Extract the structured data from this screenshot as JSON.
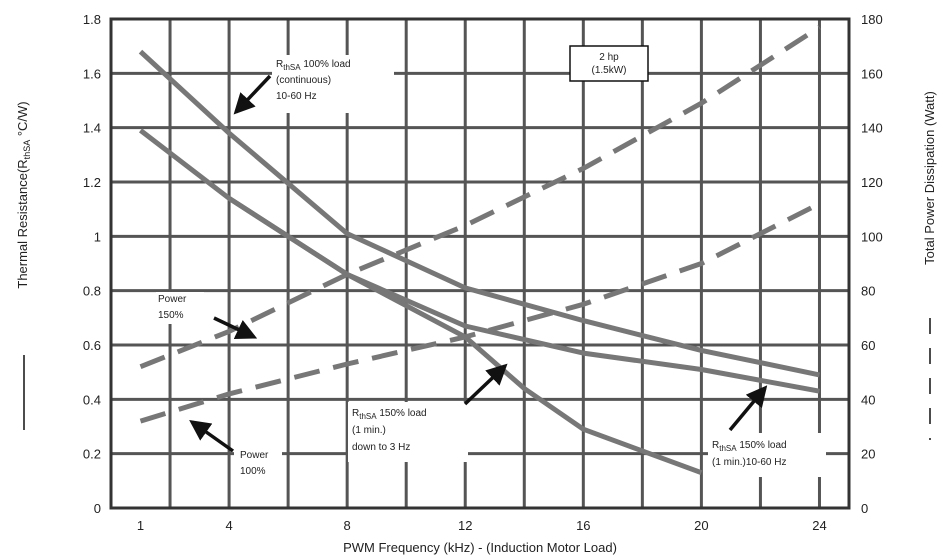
{
  "chart_data": {
    "type": "line",
    "xlabel": "PWM Frequency (kHz) - (Induction Motor Load)",
    "ylabel_left": {
      "main": "Thermal Resistance(R",
      "sub": "thSA",
      "tail": " °C/W)"
    },
    "ylabel_right": "Total Power Dissipation (Watt)",
    "x_ticks": [
      "1",
      "4",
      "8",
      "12",
      "16",
      "20",
      "24"
    ],
    "x_range": [
      0,
      25
    ],
    "y_left_ticks": [
      "0",
      "0.2",
      "0.4",
      "0.6",
      "0.8",
      "1",
      "1.2",
      "1.4",
      "1.6",
      "1.8"
    ],
    "y_left_range": [
      0,
      1.8
    ],
    "y_right_ticks": [
      "0",
      "20",
      "40",
      "60",
      "80",
      "100",
      "120",
      "140",
      "160",
      "180"
    ],
    "y_right_range": [
      0,
      180
    ],
    "grid": true,
    "series": [
      {
        "axis": "left",
        "style": "solid",
        "points": [
          [
            1,
            1.68
          ],
          [
            4,
            1.38
          ],
          [
            8,
            1.01
          ],
          [
            12,
            0.81
          ],
          [
            16,
            0.69
          ],
          [
            20,
            0.58
          ],
          [
            24,
            0.49
          ]
        ]
      },
      {
        "axis": "left",
        "style": "solid",
        "points": [
          [
            1,
            1.39
          ],
          [
            4,
            1.14
          ],
          [
            8,
            0.86
          ],
          [
            12,
            0.67
          ],
          [
            16,
            0.57
          ],
          [
            20,
            0.51
          ],
          [
            24,
            0.43
          ]
        ]
      },
      {
        "axis": "left",
        "style": "solid",
        "points": [
          [
            4,
            1.14
          ],
          [
            8,
            0.86
          ],
          [
            12,
            0.63
          ],
          [
            14,
            0.44
          ],
          [
            16,
            0.29
          ],
          [
            20,
            0.13
          ]
        ]
      },
      {
        "axis": "right",
        "style": "dashed",
        "points": [
          [
            1,
            52
          ],
          [
            4,
            65
          ],
          [
            8,
            86
          ],
          [
            12,
            104
          ],
          [
            16,
            125
          ],
          [
            20,
            149
          ],
          [
            24,
            177
          ]
        ]
      },
      {
        "axis": "right",
        "style": "dashed",
        "points": [
          [
            1,
            32
          ],
          [
            4,
            42
          ],
          [
            8,
            53
          ],
          [
            12,
            63
          ],
          [
            16,
            75
          ],
          [
            20,
            90
          ],
          [
            24,
            112
          ]
        ]
      }
    ],
    "annotations": {
      "box": [
        "2 hp",
        "(1.5kW)"
      ],
      "r100": {
        "pre": "R",
        "sub": "thSA",
        "post": " 100% load",
        "lines": [
          "(continuous)",
          "10-60 Hz"
        ]
      },
      "power150": [
        "Power",
        "150%"
      ],
      "r150a": {
        "pre": "R",
        "sub": "thSA",
        "post": " 150% load",
        "lines": [
          "(1 min.)",
          "down to 3 Hz"
        ]
      },
      "power100": [
        "Power",
        "100%"
      ],
      "r150b": {
        "pre": "R",
        "sub": "thSA",
        "post": " 150% load",
        "lines": [
          "(1 min.)10-60 Hz"
        ]
      }
    },
    "legend_marks": {
      "left": "solid",
      "right": "dashed"
    }
  }
}
